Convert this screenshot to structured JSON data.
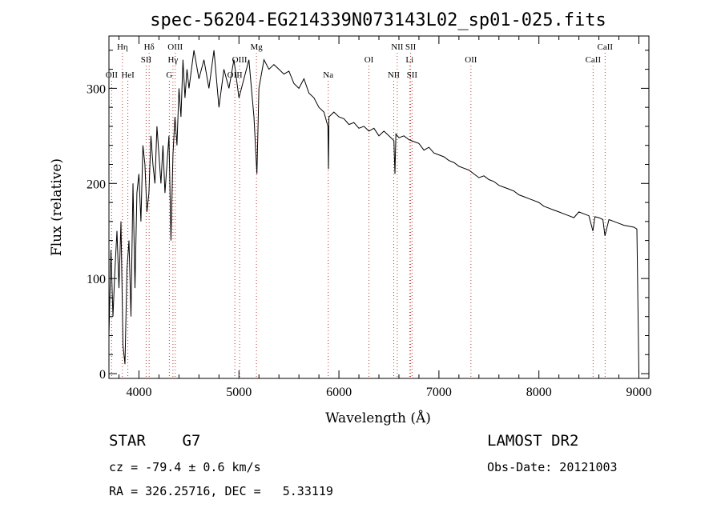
{
  "chart_data": {
    "type": "line",
    "title": "spec-56204-EG214339N073143L02_sp01-025.fits",
    "xlabel": "Wavelength (Å)",
    "ylabel": "Flux (relative)",
    "xlim": [
      3700,
      9100
    ],
    "ylim": [
      -5,
      355
    ],
    "xticks": [
      4000,
      5000,
      6000,
      7000,
      8000,
      9000
    ],
    "yticks": [
      0,
      100,
      200,
      300
    ],
    "grid": false,
    "series": [
      {
        "x": [
          3700,
          3720,
          3740,
          3760,
          3780,
          3800,
          3820,
          3840,
          3860,
          3880,
          3900,
          3920,
          3940,
          3960,
          3980,
          4000,
          4020,
          4040,
          4060,
          4080,
          4100,
          4120,
          4140,
          4160,
          4180,
          4200,
          4220,
          4240,
          4260,
          4280,
          4300,
          4320,
          4340,
          4360,
          4380,
          4400,
          4420,
          4440,
          4460,
          4480,
          4500,
          4550,
          4600,
          4650,
          4700,
          4750,
          4800,
          4850,
          4900,
          4950,
          5000,
          5050,
          5100,
          5150,
          5180,
          5200,
          5250,
          5300,
          5350,
          5400,
          5450,
          5500,
          5550,
          5600,
          5650,
          5700,
          5750,
          5800,
          5850,
          5890,
          5895,
          5900,
          5950,
          6000,
          6050,
          6100,
          6150,
          6200,
          6250,
          6300,
          6350,
          6400,
          6450,
          6500,
          6550,
          6560,
          6570,
          6600,
          6650,
          6700,
          6750,
          6800,
          6850,
          6900,
          6950,
          7000,
          7050,
          7100,
          7150,
          7200,
          7250,
          7300,
          7350,
          7400,
          7450,
          7500,
          7550,
          7600,
          7650,
          7700,
          7750,
          7800,
          7850,
          7900,
          7950,
          8000,
          8050,
          8100,
          8150,
          8200,
          8250,
          8300,
          8350,
          8400,
          8450,
          8500,
          8540,
          8560,
          8600,
          8640,
          8660,
          8700,
          8750,
          8800,
          8850,
          8900,
          8950,
          8980,
          9000
        ],
        "y": [
          40,
          130,
          60,
          110,
          150,
          90,
          160,
          30,
          10,
          110,
          140,
          60,
          200,
          90,
          190,
          210,
          160,
          240,
          220,
          170,
          190,
          250,
          220,
          200,
          260,
          230,
          200,
          240,
          190,
          220,
          250,
          140,
          230,
          270,
          240,
          300,
          270,
          330,
          290,
          320,
          300,
          340,
          310,
          330,
          300,
          340,
          280,
          320,
          300,
          330,
          290,
          310,
          330,
          270,
          210,
          300,
          330,
          320,
          325,
          320,
          315,
          318,
          305,
          300,
          310,
          295,
          290,
          280,
          275,
          260,
          215,
          270,
          275,
          270,
          268,
          262,
          264,
          258,
          260,
          255,
          258,
          250,
          255,
          250,
          245,
          210,
          252,
          248,
          250,
          246,
          244,
          242,
          235,
          238,
          232,
          230,
          228,
          224,
          222,
          218,
          216,
          214,
          210,
          206,
          208,
          204,
          202,
          198,
          196,
          194,
          192,
          188,
          186,
          184,
          182,
          180,
          176,
          174,
          172,
          170,
          168,
          166,
          164,
          170,
          168,
          166,
          150,
          165,
          164,
          162,
          145,
          162,
          160,
          158,
          156,
          155,
          154,
          152,
          0
        ]
      }
    ],
    "spectral_lines": [
      {
        "label": "OII",
        "wavelength": 3727,
        "row": 3
      },
      {
        "label": "Hη",
        "wavelength": 3835,
        "row": 1
      },
      {
        "label": "HeI",
        "wavelength": 3889,
        "row": 3
      },
      {
        "label": "Hδ",
        "wavelength": 4102,
        "row": 1
      },
      {
        "label": "SII",
        "wavelength": 4072,
        "row": 2
      },
      {
        "label": "OIII",
        "wavelength": 4363,
        "row": 1
      },
      {
        "label": "Hγ",
        "wavelength": 4340,
        "row": 2
      },
      {
        "label": "G",
        "wavelength": 4304,
        "row": 3
      },
      {
        "label": "OIII",
        "wavelength": 4959,
        "row": 3
      },
      {
        "label": "OIII",
        "wavelength": 5007,
        "row": 2
      },
      {
        "label": "Mg",
        "wavelength": 5175,
        "row": 1
      },
      {
        "label": "Na",
        "wavelength": 5893,
        "row": 3
      },
      {
        "label": "OI",
        "wavelength": 6300,
        "row": 2
      },
      {
        "label": "NII",
        "wavelength": 6548,
        "row": 3
      },
      {
        "label": "NII",
        "wavelength": 6583,
        "row": 1
      },
      {
        "label": "SII",
        "wavelength": 6717,
        "row": 1
      },
      {
        "label": "Li",
        "wavelength": 6707,
        "row": 2
      },
      {
        "label": "SII",
        "wavelength": 6731,
        "row": 3
      },
      {
        "label": "OII",
        "wavelength": 7320,
        "row": 2
      },
      {
        "label": "CaII",
        "wavelength": 8542,
        "row": 2
      },
      {
        "label": "CaII",
        "wavelength": 8662,
        "row": 1
      }
    ]
  },
  "info": {
    "object_class": "STAR    G7",
    "release": "LAMOST DR2",
    "redshift": "cz = -79.4 ± 0.6 km/s",
    "obs_date": "Obs-Date: 20121003",
    "coords": "RA = 326.25716, DEC =   5.33119"
  }
}
